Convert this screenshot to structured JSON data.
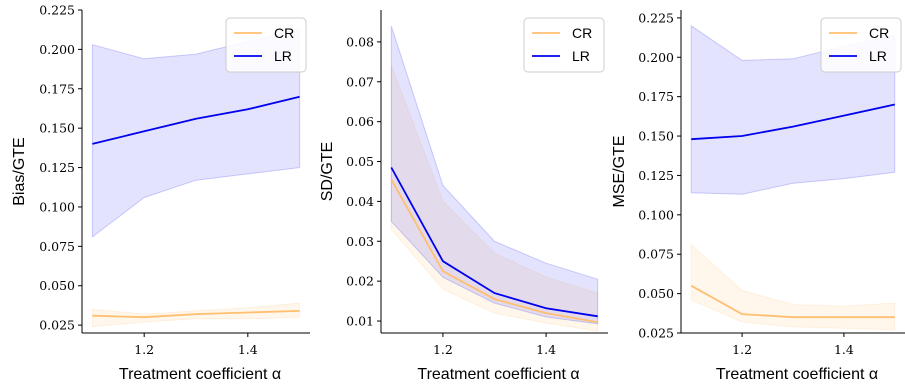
{
  "chart_data": [
    {
      "type": "line",
      "xlabel": "Treatment coefficient α",
      "ylabel": "Bias/GTE",
      "x": [
        1.1,
        1.2,
        1.3,
        1.4,
        1.5
      ],
      "xticks": [
        1.2,
        1.4
      ],
      "xtick_labels": [
        "1.2",
        "1.4"
      ],
      "ylim": [
        0.02,
        0.225
      ],
      "yticks": [
        0.025,
        0.05,
        0.075,
        0.1,
        0.125,
        0.15,
        0.175,
        0.2,
        0.225
      ],
      "ytick_labels": [
        "0.025",
        "0.050",
        "0.075",
        "0.100",
        "0.125",
        "0.150",
        "0.175",
        "0.200",
        "0.225"
      ],
      "legend": "top-right",
      "series": [
        {
          "name": "CR",
          "color": "#ffbf70",
          "values": [
            0.031,
            0.03,
            0.032,
            0.033,
            0.034
          ],
          "lower": [
            0.024,
            0.027,
            0.029,
            0.029,
            0.03
          ],
          "upper": [
            0.035,
            0.032,
            0.034,
            0.036,
            0.039
          ]
        },
        {
          "name": "LR",
          "color": "#0000ee",
          "values": [
            0.14,
            0.148,
            0.156,
            0.162,
            0.17
          ],
          "lower": [
            0.081,
            0.106,
            0.117,
            0.121,
            0.125
          ],
          "upper": [
            0.203,
            0.194,
            0.197,
            0.205,
            0.213
          ]
        }
      ]
    },
    {
      "type": "line",
      "xlabel": "Treatment coefficient α",
      "ylabel": "SD/GTE",
      "x": [
        1.1,
        1.2,
        1.3,
        1.4,
        1.5
      ],
      "xticks": [
        1.2,
        1.4
      ],
      "xtick_labels": [
        "1.2",
        "1.4"
      ],
      "ylim": [
        0.007,
        0.088
      ],
      "yticks": [
        0.01,
        0.02,
        0.03,
        0.04,
        0.05,
        0.06,
        0.07,
        0.08
      ],
      "ytick_labels": [
        "0.01",
        "0.02",
        "0.03",
        "0.04",
        "0.05",
        "0.06",
        "0.07",
        "0.08"
      ],
      "legend": "top-right",
      "series": [
        {
          "name": "CR",
          "color": "#ffbf70",
          "values": [
            0.0455,
            0.0225,
            0.0155,
            0.012,
            0.0097
          ],
          "lower": [
            0.033,
            0.018,
            0.012,
            0.0095,
            0.0075
          ],
          "upper": [
            0.074,
            0.04,
            0.027,
            0.021,
            0.017
          ]
        },
        {
          "name": "LR",
          "color": "#0000ee",
          "values": [
            0.0485,
            0.025,
            0.017,
            0.0132,
            0.0112
          ],
          "lower": [
            0.035,
            0.021,
            0.0145,
            0.011,
            0.0093
          ],
          "upper": [
            0.084,
            0.044,
            0.03,
            0.0245,
            0.0205
          ]
        }
      ]
    },
    {
      "type": "line",
      "xlabel": "Treatment coefficient α",
      "ylabel": "MSE/GTE",
      "x": [
        1.1,
        1.2,
        1.3,
        1.4,
        1.5
      ],
      "xticks": [
        1.2,
        1.4
      ],
      "xtick_labels": [
        "1.2",
        "1.4"
      ],
      "ylim": [
        0.025,
        0.23
      ],
      "yticks": [
        0.025,
        0.05,
        0.075,
        0.1,
        0.125,
        0.15,
        0.175,
        0.2,
        0.225
      ],
      "ytick_labels": [
        "0.025",
        "0.050",
        "0.075",
        "0.100",
        "0.125",
        "0.150",
        "0.175",
        "0.200",
        "0.225"
      ],
      "legend": "top-right",
      "series": [
        {
          "name": "CR",
          "color": "#ffbf70",
          "values": [
            0.055,
            0.037,
            0.035,
            0.035,
            0.035
          ],
          "lower": [
            0.046,
            0.032,
            0.029,
            0.028,
            0.027
          ],
          "upper": [
            0.081,
            0.052,
            0.043,
            0.042,
            0.044
          ]
        },
        {
          "name": "LR",
          "color": "#0000ee",
          "values": [
            0.148,
            0.15,
            0.156,
            0.163,
            0.17
          ],
          "lower": [
            0.114,
            0.113,
            0.12,
            0.123,
            0.127
          ],
          "upper": [
            0.22,
            0.198,
            0.199,
            0.207,
            0.214
          ]
        }
      ]
    }
  ]
}
